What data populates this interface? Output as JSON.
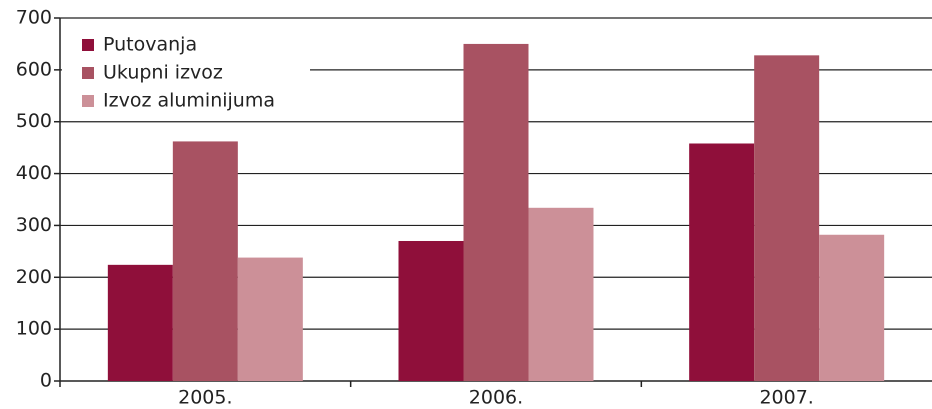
{
  "chart_data": {
    "type": "bar",
    "categories": [
      "2005.",
      "2006.",
      "2007."
    ],
    "series": [
      {
        "name": "Putovanja",
        "color": "#8f0f3a",
        "values": [
          224,
          270,
          458
        ]
      },
      {
        "name": "Ukupni izvoz",
        "color": "#a85262",
        "values": [
          462,
          650,
          628
        ]
      },
      {
        "name": "Izvoz aluminijuma",
        "color": "#cc9098",
        "values": [
          238,
          334,
          282
        ]
      }
    ],
    "ylim": [
      0,
      700
    ],
    "yticks": [
      0,
      100,
      200,
      300,
      400,
      500,
      600,
      700
    ],
    "grid": true,
    "legend": "top-left"
  }
}
